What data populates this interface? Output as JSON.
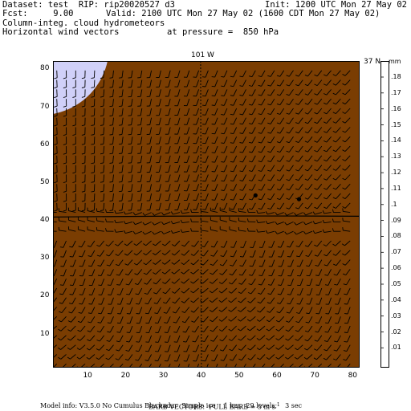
{
  "header": {
    "dataset_line": "Dataset: test  RIP: rip20020527 d3",
    "init_line": "Init: 1200 UTC Mon 27 May 02",
    "fcst_line": "Fcst:     9.00",
    "valid_line": "Valid: 2100 UTC Mon 27 May 02 (1600 CDT Mon 27 May 02)",
    "field_line": "Column-integ. cloud hydrometeors",
    "vector_line": "Horizontal wind vectors",
    "pressure_line": "at pressure =  850 hPa"
  },
  "map": {
    "top_label": "101 W",
    "right_label": "37 N",
    "x_ticks": [
      "10",
      "20",
      "30",
      "40",
      "50",
      "60",
      "70",
      "80"
    ],
    "y_ticks": [
      "10",
      "20",
      "30",
      "40",
      "50",
      "60",
      "70",
      "80"
    ],
    "x_range": [
      1,
      82
    ],
    "y_range": [
      1,
      82
    ],
    "meridian_x": 40,
    "parallel_y": 41,
    "points": [
      {
        "x": 54.5,
        "y": 46.5
      },
      {
        "x": 66,
        "y": 45.5
      }
    ],
    "colors": {
      "background": "#7a3d02",
      "cloud_fill": "#d0d0f8",
      "barb": "#000000",
      "line": "#000000"
    }
  },
  "colorbar": {
    "units": "mm",
    "labels": [
      ".18",
      ".17",
      ".16",
      ".15",
      ".14",
      ".13",
      ".12",
      ".11",
      ".1",
      ".09",
      ".08",
      ".07",
      ".06",
      ".05",
      ".04",
      ".03",
      ".02",
      ".01"
    ],
    "levels": [
      0.18,
      0.17,
      0.16,
      0.15,
      0.14,
      0.13,
      0.12,
      0.11,
      0.1,
      0.09,
      0.08,
      0.07,
      0.06,
      0.05,
      0.04,
      0.03,
      0.02,
      0.01
    ]
  },
  "footer": {
    "barb_line": "BARB VECTORS:  FULL BARB = 5 m s",
    "barb_exp": "-1",
    "model_line": "Model info: V3.5.0 No Cumulus Blackadar  Simple ice    1 km,  29 levels,    3 sec"
  }
}
